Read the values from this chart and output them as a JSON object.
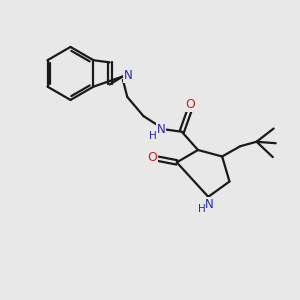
{
  "bg_color": "#e8e8e8",
  "bond_color": "#1a1a1a",
  "n_color": "#2222cc",
  "o_color": "#cc2222",
  "line_width": 1.6,
  "figsize": [
    3.0,
    3.0
  ],
  "dpi": 100,
  "xlim": [
    0,
    10
  ],
  "ylim": [
    0,
    10
  ]
}
